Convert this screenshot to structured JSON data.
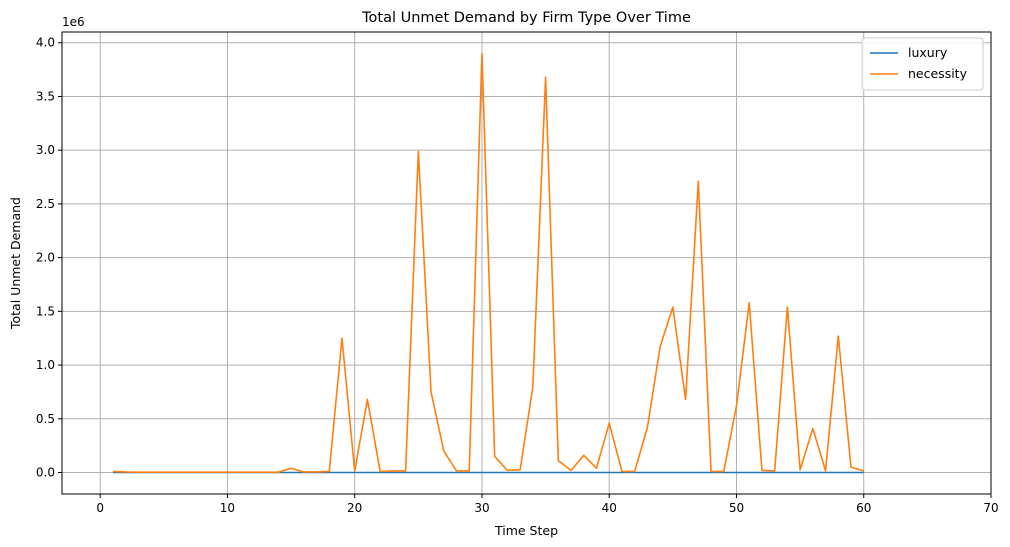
{
  "chart_data": {
    "type": "line",
    "title": "Total Unmet Demand by Firm Type Over Time",
    "xlabel": "Time Step",
    "ylabel": "Total Unmet Demand",
    "y_offset_label": "1e6",
    "y_scale": 1000000,
    "xlim": [
      -3,
      70
    ],
    "ylim": [
      -200000,
      4100000
    ],
    "x_ticks": [
      0,
      10,
      20,
      30,
      40,
      50,
      60,
      70
    ],
    "y_ticks": [
      0,
      500000,
      1000000,
      1500000,
      2000000,
      2500000,
      3000000,
      3500000,
      4000000
    ],
    "y_tick_labels": [
      "0.0",
      "0.5",
      "1.0",
      "1.5",
      "2.0",
      "2.5",
      "3.0",
      "3.5",
      "4.0"
    ],
    "grid": true,
    "legend_position": "top-right",
    "x": [
      1,
      2,
      3,
      4,
      5,
      6,
      7,
      8,
      9,
      10,
      11,
      12,
      13,
      14,
      15,
      16,
      17,
      18,
      19,
      20,
      21,
      22,
      23,
      24,
      25,
      26,
      27,
      28,
      29,
      30,
      31,
      32,
      33,
      34,
      35,
      36,
      37,
      38,
      39,
      40,
      41,
      42,
      43,
      44,
      45,
      46,
      47,
      48,
      49,
      50,
      51,
      52,
      53,
      54,
      55,
      56,
      57,
      58,
      59,
      60
    ],
    "series": [
      {
        "name": "luxury",
        "color": "#1f77b4",
        "values": [
          0,
          0,
          0,
          0,
          0,
          0,
          0,
          0,
          0,
          0,
          0,
          0,
          0,
          0,
          0,
          0,
          0,
          0,
          0,
          0,
          0,
          0,
          0,
          0,
          0,
          0,
          0,
          0,
          0,
          0,
          0,
          0,
          0,
          0,
          0,
          0,
          0,
          0,
          0,
          0,
          0,
          0,
          0,
          0,
          0,
          0,
          0,
          0,
          0,
          0,
          0,
          0,
          0,
          0,
          0,
          0,
          0,
          0,
          0,
          0
        ]
      },
      {
        "name": "necessity",
        "color": "#ff7f0e",
        "values": [
          10000,
          5000,
          3000,
          3000,
          3000,
          3000,
          3000,
          3000,
          3000,
          3000,
          3000,
          3000,
          3000,
          3000,
          40000,
          5000,
          5000,
          10000,
          1250000,
          15000,
          680000,
          10000,
          15000,
          15000,
          2990000,
          750000,
          200000,
          15000,
          15000,
          3900000,
          150000,
          20000,
          25000,
          800000,
          3680000,
          110000,
          20000,
          160000,
          40000,
          460000,
          10000,
          10000,
          420000,
          1170000,
          1540000,
          680000,
          2710000,
          10000,
          10000,
          620000,
          1580000,
          20000,
          15000,
          1540000,
          25000,
          410000,
          15000,
          1270000,
          50000,
          15000
        ]
      }
    ]
  }
}
